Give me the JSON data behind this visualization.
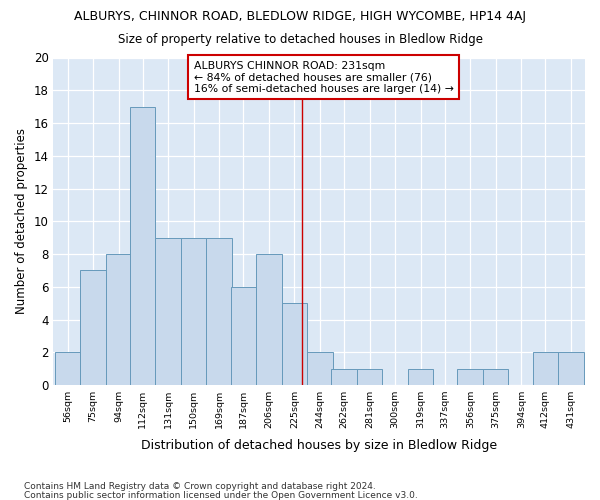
{
  "title": "ALBURYS, CHINNOR ROAD, BLEDLOW RIDGE, HIGH WYCOMBE, HP14 4AJ",
  "subtitle": "Size of property relative to detached houses in Bledlow Ridge",
  "xlabel": "Distribution of detached houses by size in Bledlow Ridge",
  "ylabel": "Number of detached properties",
  "bins": [
    56,
    75,
    94,
    112,
    131,
    150,
    169,
    187,
    206,
    225,
    244,
    262,
    281,
    300,
    319,
    337,
    356,
    375,
    394,
    412,
    431
  ],
  "values": [
    2,
    7,
    8,
    17,
    9,
    9,
    9,
    6,
    8,
    5,
    2,
    1,
    1,
    0,
    1,
    0,
    1,
    1,
    0,
    2,
    2
  ],
  "bar_color": "#c8d9ec",
  "bar_edge_color": "#6699bb",
  "vline_x": 231,
  "vline_color": "#cc0000",
  "annotation_text": "ALBURYS CHINNOR ROAD: 231sqm\n← 84% of detached houses are smaller (76)\n16% of semi-detached houses are larger (14) →",
  "annotation_box_color": "#ffffff",
  "annotation_box_edge": "#cc0000",
  "ylim": [
    0,
    20
  ],
  "yticks": [
    0,
    2,
    4,
    6,
    8,
    10,
    12,
    14,
    16,
    18,
    20
  ],
  "bg_color": "#dce8f5",
  "fig_bg_color": "#ffffff",
  "footer1": "Contains HM Land Registry data © Crown copyright and database right 2024.",
  "footer2": "Contains public sector information licensed under the Open Government Licence v3.0."
}
